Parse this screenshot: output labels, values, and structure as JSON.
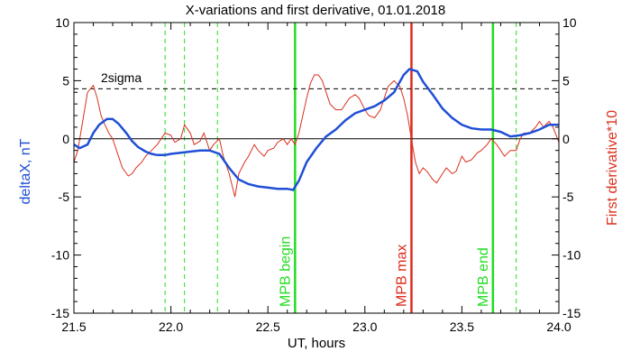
{
  "chart_data": {
    "type": "line",
    "title": "X-variations and first derivative, 01.01.2018",
    "xlabel": "UT, hours",
    "ylabel_left": "deltaX, nT",
    "ylabel_right": "First derivative*10",
    "xlim": [
      21.5,
      24.0
    ],
    "ylim": [
      -15,
      10
    ],
    "x_ticks": [
      "21.5",
      "22.0",
      "22.5",
      "23.0",
      "23.5",
      "24.0"
    ],
    "y_ticks_left": [
      "10",
      "5",
      "0",
      "-5",
      "-10",
      "-15"
    ],
    "y_ticks_right": [
      "10",
      "5",
      "0",
      "-5",
      "-10",
      "-15"
    ],
    "grid": false,
    "sigma_label": "2sigma",
    "sigma_level": 4.3,
    "zero_line": 0,
    "colors": {
      "deltax": "#1f4fd6",
      "derivative": "#d9301e",
      "marker_green": "#22dd22",
      "marker_red": "#dd2a1a",
      "axis_label_left": "#1f4fd6",
      "axis_label_right": "#d9301e"
    },
    "series": [
      {
        "name": "deltaX",
        "x": [
          21.5,
          21.53,
          21.57,
          21.6,
          21.63,
          21.67,
          21.7,
          21.73,
          21.77,
          21.8,
          21.83,
          21.87,
          21.9,
          21.93,
          21.97,
          22.0,
          22.05,
          22.1,
          22.15,
          22.2,
          22.25,
          22.3,
          22.35,
          22.4,
          22.45,
          22.5,
          22.55,
          22.6,
          22.63,
          22.66,
          22.7,
          22.75,
          22.8,
          22.85,
          22.9,
          22.95,
          23.0,
          23.05,
          23.1,
          23.15,
          23.2,
          23.23,
          23.27,
          23.3,
          23.35,
          23.4,
          23.45,
          23.5,
          23.55,
          23.6,
          23.65,
          23.7,
          23.75,
          23.8,
          23.85,
          23.9,
          23.95,
          24.0
        ],
        "values": [
          -0.5,
          -0.8,
          -0.5,
          0.5,
          1.2,
          1.7,
          1.7,
          1.3,
          0.5,
          -0.2,
          -0.7,
          -1.1,
          -1.3,
          -1.4,
          -1.4,
          -1.3,
          -1.2,
          -1.1,
          -1.0,
          -1.0,
          -1.3,
          -2.5,
          -3.5,
          -3.9,
          -4.1,
          -4.2,
          -4.3,
          -4.3,
          -4.4,
          -3.6,
          -2.0,
          -0.8,
          0.2,
          0.8,
          1.6,
          2.2,
          2.5,
          2.8,
          3.3,
          4.0,
          5.5,
          6.0,
          5.8,
          4.9,
          3.8,
          2.6,
          1.8,
          1.2,
          0.9,
          0.8,
          0.8,
          0.6,
          0.2,
          0.3,
          0.5,
          0.8,
          1.2,
          1.2
        ]
      },
      {
        "name": "First derivative*10",
        "x": [
          21.5,
          21.52,
          21.55,
          21.57,
          21.6,
          21.62,
          21.64,
          21.66,
          21.68,
          21.7,
          21.72,
          21.75,
          21.78,
          21.8,
          21.82,
          21.85,
          21.87,
          21.9,
          21.93,
          21.95,
          21.97,
          22.0,
          22.02,
          22.05,
          22.07,
          22.1,
          22.12,
          22.15,
          22.17,
          22.2,
          22.22,
          22.25,
          22.27,
          22.3,
          22.33,
          22.35,
          22.38,
          22.4,
          22.43,
          22.45,
          22.48,
          22.5,
          22.53,
          22.55,
          22.58,
          22.6,
          22.62,
          22.64,
          22.66,
          22.68,
          22.7,
          22.72,
          22.74,
          22.76,
          22.78,
          22.8,
          22.82,
          22.85,
          22.88,
          22.9,
          22.92,
          22.95,
          22.97,
          23.0,
          23.02,
          23.05,
          23.08,
          23.1,
          23.12,
          23.15,
          23.18,
          23.2,
          23.22,
          23.24,
          23.26,
          23.28,
          23.3,
          23.32,
          23.35,
          23.37,
          23.4,
          23.42,
          23.45,
          23.47,
          23.5,
          23.52,
          23.55,
          23.58,
          23.6,
          23.63,
          23.65,
          23.68,
          23.7,
          23.72,
          23.75,
          23.78,
          23.8,
          23.82,
          23.85,
          23.88,
          23.9,
          23.92,
          23.95,
          23.97,
          24.0
        ],
        "values": [
          -2.0,
          -1.0,
          2.0,
          4.0,
          4.6,
          3.5,
          2.0,
          1.2,
          0.5,
          0.0,
          -1.0,
          -2.5,
          -3.2,
          -3.0,
          -2.5,
          -2.0,
          -1.5,
          -1.0,
          -0.5,
          0.0,
          0.5,
          0.3,
          -0.3,
          0.0,
          1.2,
          0.5,
          -0.5,
          -0.2,
          0.5,
          -1.0,
          -0.5,
          0.0,
          -1.5,
          -3.0,
          -5.0,
          -3.0,
          -2.0,
          -1.5,
          -0.5,
          -1.0,
          -1.5,
          -1.0,
          -0.8,
          -0.3,
          0.0,
          -0.5,
          0.0,
          -0.5,
          0.5,
          2.0,
          3.5,
          4.8,
          5.5,
          5.5,
          5.0,
          4.0,
          3.0,
          2.5,
          2.5,
          3.0,
          3.5,
          3.8,
          3.5,
          2.5,
          2.0,
          1.8,
          2.5,
          3.5,
          4.5,
          5.0,
          4.5,
          3.5,
          2.0,
          0.0,
          -2.0,
          -3.0,
          -2.5,
          -2.8,
          -3.5,
          -3.8,
          -3.0,
          -2.5,
          -3.0,
          -2.8,
          -1.5,
          -2.0,
          -1.8,
          -1.2,
          -1.0,
          -0.5,
          0.0,
          -0.5,
          -1.0,
          -1.5,
          -1.0,
          -1.0,
          0.0,
          0.5,
          0.5,
          1.0,
          1.5,
          1.0,
          1.5,
          1.0,
          -0.3
        ]
      }
    ],
    "markers": [
      {
        "x": 21.97,
        "style": "dashed",
        "color": "green",
        "label": ""
      },
      {
        "x": 22.07,
        "style": "dashed",
        "color": "green",
        "label": ""
      },
      {
        "x": 22.24,
        "style": "dashed",
        "color": "green",
        "label": ""
      },
      {
        "x": 22.64,
        "style": "solid",
        "color": "green",
        "label": "MPB begin"
      },
      {
        "x": 23.24,
        "style": "solid",
        "color": "red",
        "label": "MPB max"
      },
      {
        "x": 23.66,
        "style": "solid",
        "color": "green",
        "label": "MPB end"
      },
      {
        "x": 23.78,
        "style": "dashed",
        "color": "green",
        "label": ""
      }
    ]
  }
}
